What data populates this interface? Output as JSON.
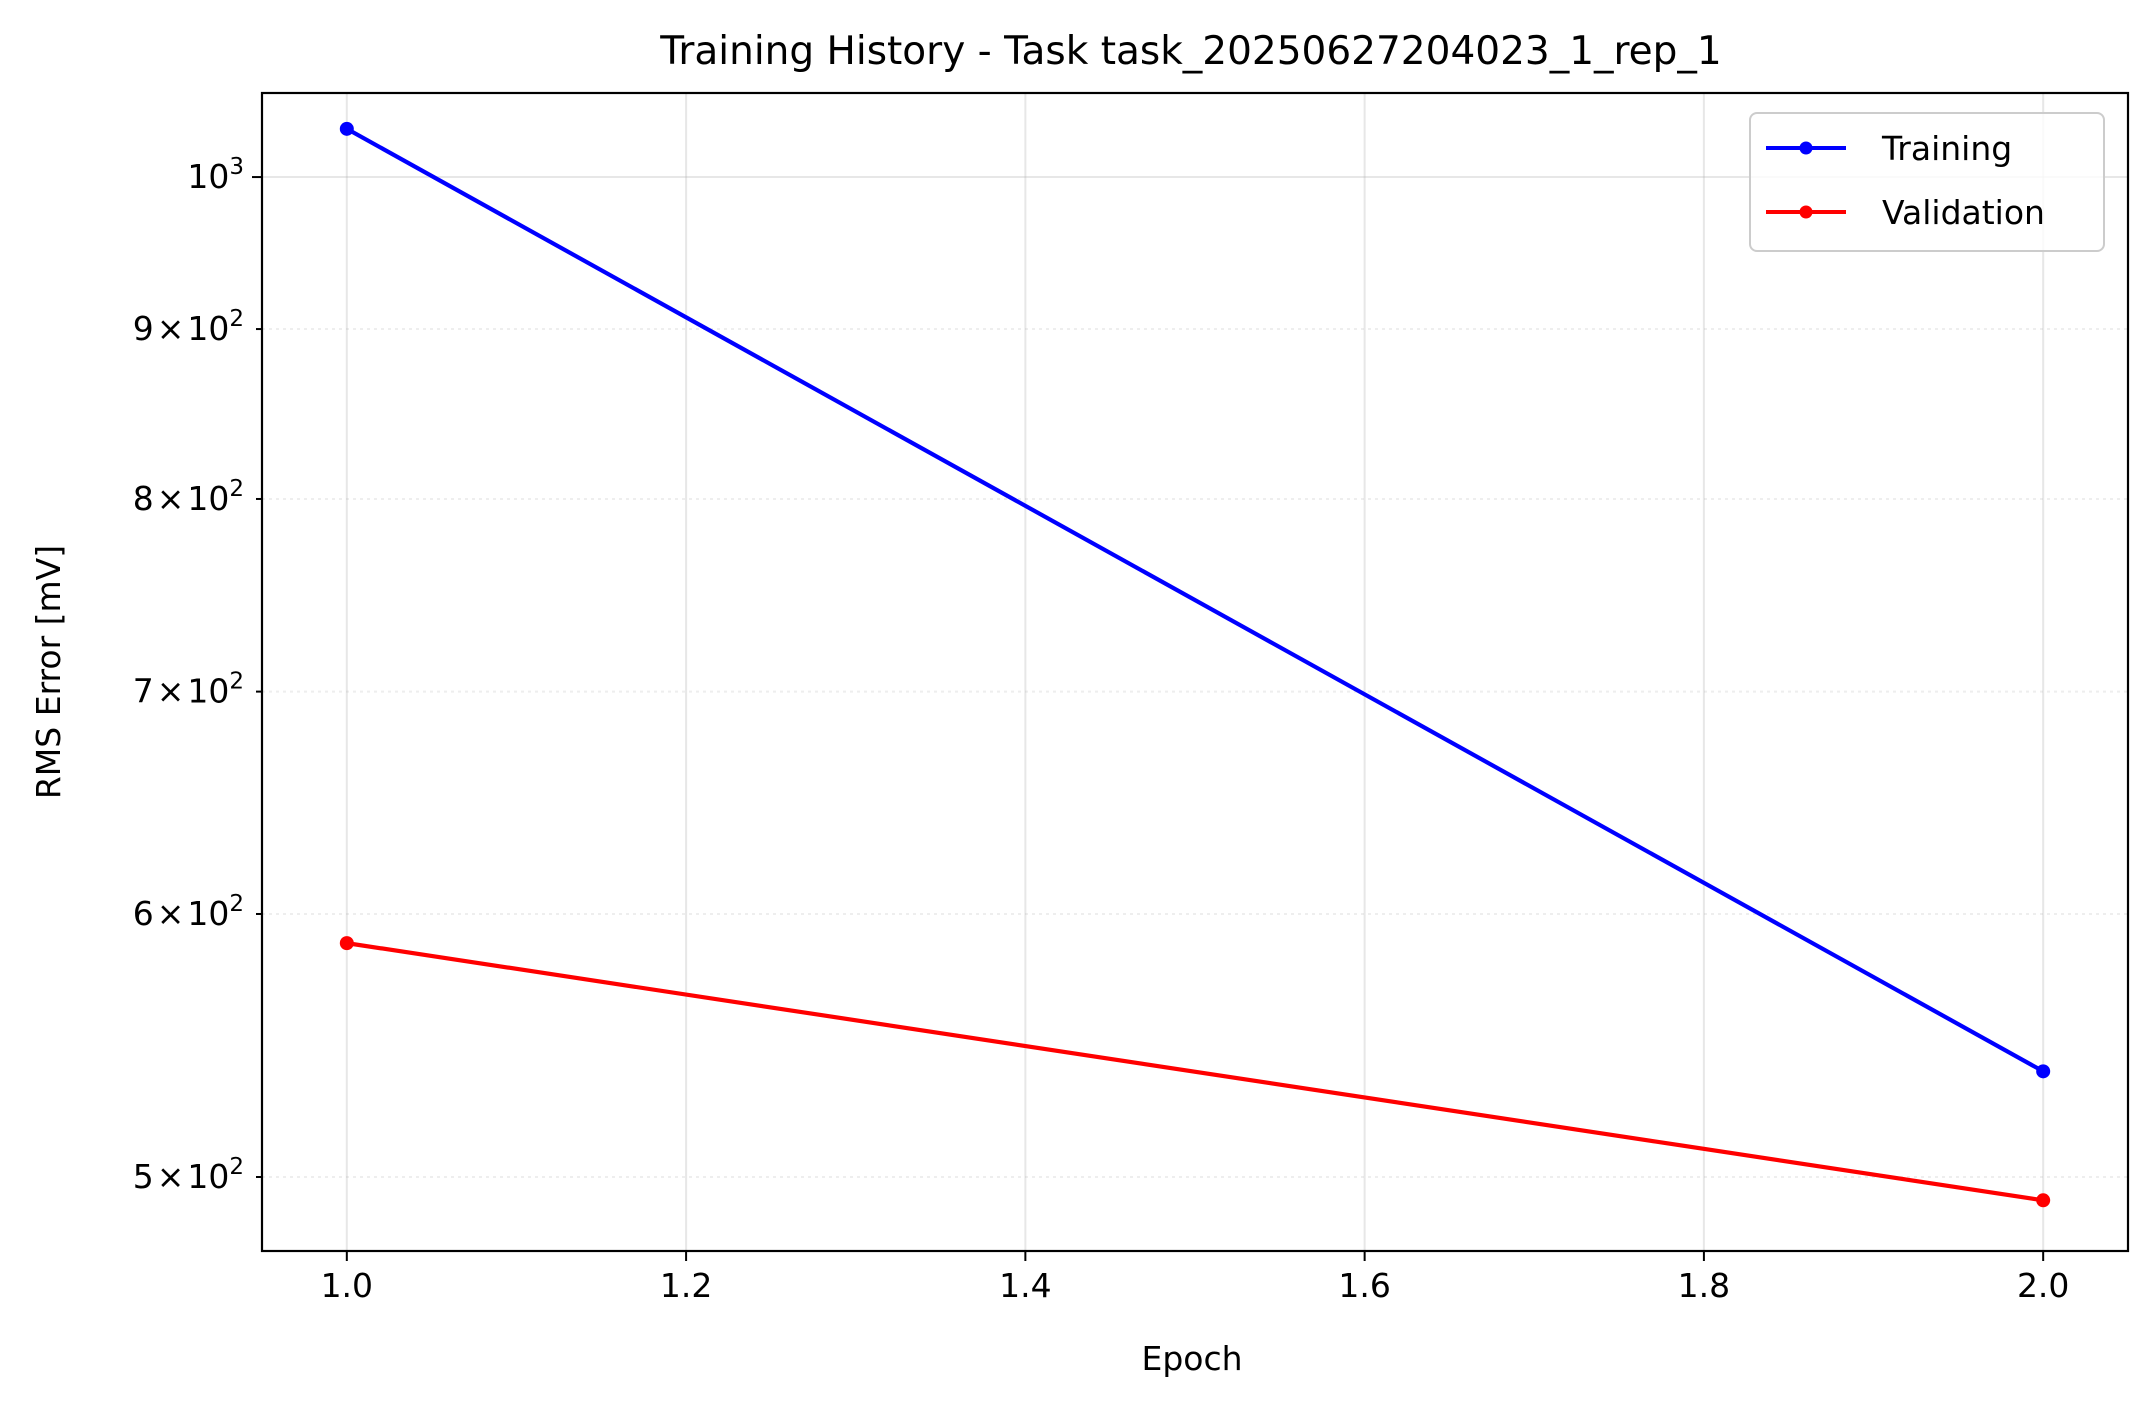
{
  "chart_data": {
    "type": "line",
    "title": "Training History - Task task_20250627204023_1_rep_1",
    "xlabel": "Epoch",
    "ylabel": "RMS Error [mV]",
    "yscale": "log",
    "xlim": [
      0.95,
      2.05
    ],
    "ylim": [
      475,
      1060
    ],
    "grid": true,
    "legend_position": "top-right",
    "x": [
      1.0,
      2.0
    ],
    "xticks": [
      1.0,
      1.2,
      1.4,
      1.6,
      1.8,
      2.0
    ],
    "xtick_labels": [
      "1.0",
      "1.2",
      "1.4",
      "1.6",
      "1.8",
      "2.0"
    ],
    "yticks": [
      {
        "value": 500,
        "mantissa": "5",
        "base": "10",
        "exp": "2"
      },
      {
        "value": 600,
        "mantissa": "6",
        "base": "10",
        "exp": "2"
      },
      {
        "value": 700,
        "mantissa": "7",
        "base": "10",
        "exp": "2"
      },
      {
        "value": 800,
        "mantissa": "8",
        "base": "10",
        "exp": "2"
      },
      {
        "value": 900,
        "mantissa": "9",
        "base": "10",
        "exp": "2"
      },
      {
        "value": 1000,
        "mantissa": "",
        "base": "10",
        "exp": "3"
      }
    ],
    "series": [
      {
        "name": "Training",
        "color": "#0000ff",
        "values": [
          1034,
          538
        ]
      },
      {
        "name": "Validation",
        "color": "#ff0000",
        "values": [
          588,
          492
        ]
      }
    ]
  }
}
